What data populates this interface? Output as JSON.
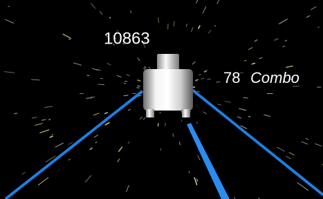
{
  "hud": {
    "score": 10863,
    "combo": {
      "count": 78,
      "label": "Combo"
    }
  }
}
